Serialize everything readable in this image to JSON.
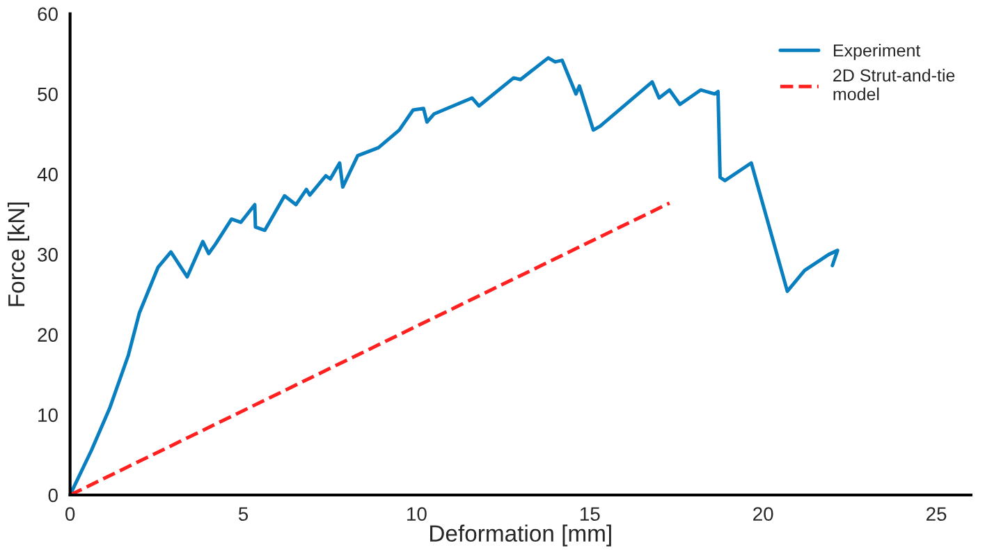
{
  "chart_data": {
    "type": "line",
    "xlabel": "Deformation [mm]",
    "ylabel": "Force [kN]",
    "xlim": [
      0,
      26
    ],
    "ylim": [
      0,
      60
    ],
    "xticks": [
      0,
      5,
      10,
      15,
      20,
      25
    ],
    "yticks": [
      0,
      10,
      20,
      30,
      40,
      50,
      60
    ],
    "grid": false,
    "legend": "top right",
    "series": [
      {
        "name": "Experiment",
        "color": "#0a7fc0",
        "line_style": "solid",
        "x": [
          0,
          0.62,
          1.15,
          1.68,
          2.0,
          2.54,
          2.91,
          3.38,
          3.83,
          4.0,
          4.2,
          4.66,
          4.93,
          5.33,
          5.35,
          5.62,
          6.19,
          6.52,
          6.82,
          6.92,
          7.38,
          7.51,
          7.78,
          7.87,
          8.3,
          8.9,
          9.5,
          9.9,
          10.2,
          10.3,
          10.5,
          11.6,
          11.8,
          12.8,
          13.0,
          13.8,
          14.0,
          14.2,
          14.6,
          14.7,
          15.1,
          15.3,
          16.8,
          17.0,
          17.3,
          17.6,
          18.2,
          18.6,
          18.7,
          18.76,
          18.9,
          19.66,
          20.7,
          21.2,
          21.9,
          22.15,
          22.0
        ],
        "values": [
          0,
          5.6,
          10.9,
          17.4,
          22.7,
          28.4,
          30.3,
          27.2,
          31.6,
          30.1,
          31.3,
          34.4,
          34.0,
          36.2,
          33.4,
          33.0,
          37.3,
          36.2,
          38.1,
          37.4,
          39.8,
          39.4,
          41.4,
          38.4,
          42.3,
          43.3,
          45.5,
          48.0,
          48.2,
          46.5,
          47.5,
          49.5,
          48.5,
          52.0,
          51.8,
          54.5,
          54.0,
          54.2,
          50.0,
          51.0,
          45.5,
          46.0,
          51.5,
          49.5,
          50.5,
          48.7,
          50.5,
          50.0,
          50.3,
          39.6,
          39.2,
          41.4,
          25.4,
          28.0,
          30.0,
          30.5,
          28.6
        ]
      },
      {
        "name": "2D Strut-and-tie\nmodel",
        "color": "#ff2020",
        "line_style": "dashed",
        "x": [
          0,
          17.3
        ],
        "values": [
          0,
          36.4
        ]
      }
    ]
  }
}
